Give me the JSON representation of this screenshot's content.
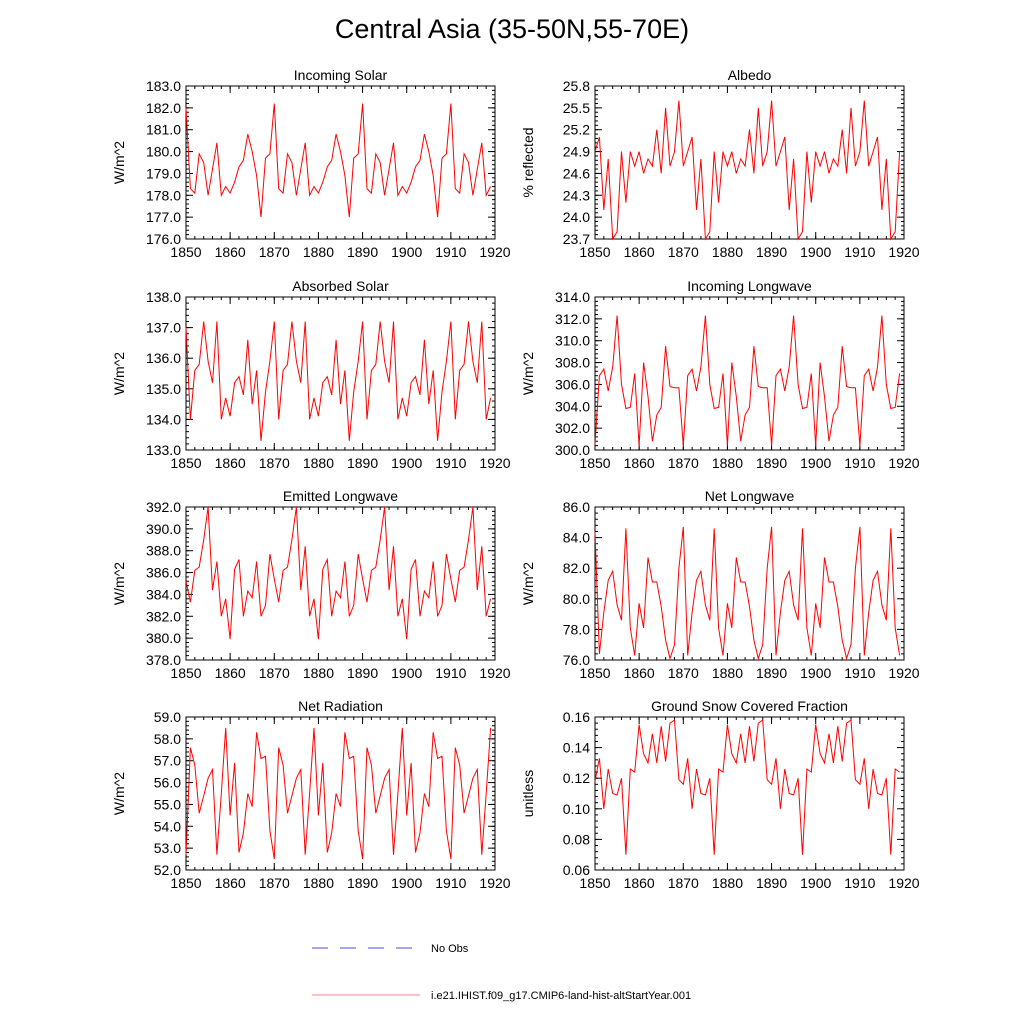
{
  "page": {
    "title": "Central Asia (35-50N,55-70E)"
  },
  "legend": {
    "obs_label": "No Obs",
    "model_label": "i.e21.IHIST.f09_g17.CMIP6-land-hist-altStartYear.001",
    "obs_color": "#4b4bd8",
    "model_color": "#ff0000"
  },
  "chart_data": [
    {
      "type": "line",
      "title": "Incoming Solar",
      "ylabel": "W/m^2",
      "xlim": [
        1850,
        1920
      ],
      "ylim": [
        176.0,
        183.0
      ],
      "xticks": [
        "1850",
        "1860",
        "1870",
        "1880",
        "1890",
        "1900",
        "1910",
        "1920"
      ],
      "yticks": [
        "176.0",
        "177.0",
        "178.0",
        "179.0",
        "180.0",
        "181.0",
        "182.0",
        "183.0"
      ],
      "x_start": 1850,
      "series": [
        {
          "values": [
            182.0,
            178.3,
            178.1,
            179.9,
            179.5,
            178.0,
            179.2,
            180.4,
            178.0,
            178.4,
            178.1,
            178.6,
            179.3,
            179.6,
            180.8,
            180.0,
            178.9,
            177.0,
            179.7,
            179.9,
            182.2,
            178.3,
            178.1,
            179.9,
            179.5,
            178.0,
            179.2,
            180.4,
            178.0,
            178.4,
            178.1,
            178.6,
            179.3,
            179.6,
            180.8,
            180.0,
            178.9,
            177.0,
            179.7,
            179.9,
            182.2,
            178.3,
            178.1,
            179.9,
            179.5,
            178.0,
            179.2,
            180.4,
            178.0,
            178.4,
            178.1,
            178.6,
            179.3,
            179.6,
            180.8,
            180.0,
            178.9,
            177.0,
            179.7,
            179.9,
            182.2,
            178.3,
            178.1,
            179.9,
            179.5,
            178.0,
            179.2,
            180.4,
            178.0,
            178.4
          ]
        }
      ]
    },
    {
      "type": "line",
      "title": "Albedo",
      "ylabel": "% reflected",
      "xlim": [
        1850,
        1920
      ],
      "ylim": [
        23.7,
        25.8
      ],
      "xticks": [
        "1850",
        "1860",
        "1870",
        "1880",
        "1890",
        "1900",
        "1910",
        "1920"
      ],
      "yticks": [
        "23.7",
        "24.0",
        "24.3",
        "24.6",
        "24.9",
        "25.2",
        "25.5",
        "25.8"
      ],
      "x_start": 1850,
      "series": [
        {
          "values": [
            24.9,
            25.1,
            24.1,
            24.8,
            23.7,
            23.8,
            24.9,
            24.2,
            24.9,
            24.7,
            24.9,
            24.6,
            24.8,
            24.7,
            25.2,
            24.6,
            25.5,
            24.7,
            24.9,
            25.6,
            24.7,
            24.9,
            25.1,
            24.1,
            24.8,
            23.7,
            23.8,
            24.9,
            24.2,
            24.9,
            24.7,
            24.9,
            24.6,
            24.8,
            24.7,
            25.2,
            24.6,
            25.5,
            24.7,
            24.9,
            25.6,
            24.7,
            24.9,
            25.1,
            24.1,
            24.8,
            23.7,
            23.8,
            24.9,
            24.2,
            24.9,
            24.7,
            24.9,
            24.6,
            24.8,
            24.7,
            25.2,
            24.6,
            25.5,
            24.7,
            24.9,
            25.6,
            24.7,
            24.9,
            25.1,
            24.1,
            24.8,
            23.7,
            23.8,
            24.9
          ]
        }
      ]
    },
    {
      "type": "line",
      "title": "Absorbed Solar",
      "ylabel": "W/m^2",
      "xlim": [
        1850,
        1920
      ],
      "ylim": [
        133.0,
        138.0
      ],
      "xticks": [
        "1850",
        "1860",
        "1870",
        "1880",
        "1890",
        "1900",
        "1910",
        "1920"
      ],
      "yticks": [
        "133.0",
        "134.0",
        "135.0",
        "136.0",
        "137.0",
        "138.0"
      ],
      "x_start": 1850,
      "series": [
        {
          "values": [
            137.0,
            134.0,
            135.6,
            135.8,
            137.2,
            135.9,
            135.2,
            137.2,
            134.0,
            134.7,
            134.1,
            135.2,
            135.4,
            134.8,
            136.6,
            134.5,
            135.6,
            133.3,
            134.9,
            135.9,
            137.2,
            134.0,
            135.6,
            135.8,
            137.2,
            135.9,
            135.2,
            137.2,
            134.0,
            134.7,
            134.1,
            135.2,
            135.4,
            134.8,
            136.6,
            134.5,
            135.6,
            133.3,
            134.9,
            135.9,
            137.2,
            134.0,
            135.6,
            135.8,
            137.2,
            135.9,
            135.2,
            137.2,
            134.0,
            134.7,
            134.1,
            135.2,
            135.4,
            134.8,
            136.6,
            134.5,
            135.6,
            133.3,
            134.9,
            135.9,
            137.2,
            134.0,
            135.6,
            135.8,
            137.2,
            135.9,
            135.2,
            137.2,
            134.0,
            134.7
          ]
        }
      ]
    },
    {
      "type": "line",
      "title": "Incoming Longwave",
      "ylabel": "W/m^2",
      "xlim": [
        1850,
        1920
      ],
      "ylim": [
        300.0,
        314.0
      ],
      "xticks": [
        "1850",
        "1860",
        "1870",
        "1880",
        "1890",
        "1900",
        "1910",
        "1920"
      ],
      "yticks": [
        "300.0",
        "302.0",
        "304.0",
        "306.0",
        "308.0",
        "310.0",
        "312.0",
        "314.0"
      ],
      "x_start": 1850,
      "series": [
        {
          "values": [
            300.5,
            306.8,
            307.4,
            305.4,
            307.6,
            312.3,
            306.0,
            303.8,
            303.9,
            307.0,
            300.4,
            308.0,
            304.9,
            300.8,
            303.2,
            303.9,
            309.5,
            305.8,
            305.7,
            305.7,
            300.4,
            306.8,
            307.4,
            305.4,
            307.6,
            312.3,
            306.0,
            303.8,
            303.9,
            307.0,
            300.4,
            308.0,
            304.9,
            300.8,
            303.2,
            303.9,
            309.5,
            305.8,
            305.7,
            305.7,
            300.4,
            306.8,
            307.4,
            305.4,
            307.6,
            312.3,
            306.0,
            303.8,
            303.9,
            307.0,
            300.4,
            308.0,
            304.9,
            300.8,
            303.2,
            303.9,
            309.5,
            305.8,
            305.7,
            305.7,
            300.4,
            306.8,
            307.4,
            305.4,
            307.6,
            312.3,
            306.0,
            303.8,
            303.9,
            307.0
          ]
        }
      ]
    },
    {
      "type": "line",
      "title": "Emitted Longwave",
      "ylabel": "W/m^2",
      "xlim": [
        1850,
        1920
      ],
      "ylim": [
        378.0,
        392.0
      ],
      "xticks": [
        "1850",
        "1860",
        "1870",
        "1880",
        "1890",
        "1900",
        "1910",
        "1920"
      ],
      "yticks": [
        "378.0",
        "380.0",
        "382.0",
        "384.0",
        "386.0",
        "388.0",
        "390.0",
        "392.0"
      ],
      "x_start": 1850,
      "series": [
        {
          "values": [
            385.2,
            383.3,
            386.2,
            386.5,
            389.0,
            392.0,
            384.4,
            387.0,
            382.0,
            383.6,
            379.9,
            386.3,
            387.2,
            382.0,
            384.3,
            383.7,
            387.0,
            382.0,
            383.0,
            387.7,
            385.4,
            383.3,
            386.2,
            386.5,
            389.0,
            392.0,
            384.4,
            388.4,
            382.0,
            383.6,
            379.9,
            386.3,
            387.2,
            382.0,
            384.3,
            383.7,
            387.0,
            382.0,
            383.0,
            387.7,
            385.4,
            383.3,
            386.2,
            386.5,
            389.0,
            392.0,
            384.4,
            388.4,
            382.0,
            383.6,
            379.9,
            386.3,
            387.2,
            382.0,
            384.3,
            383.7,
            387.0,
            382.0,
            383.0,
            387.7,
            385.4,
            383.3,
            386.2,
            386.5,
            389.0,
            392.0,
            384.4,
            388.4,
            382.0,
            383.6
          ]
        }
      ]
    },
    {
      "type": "line",
      "title": "Net Longwave",
      "ylabel": "W/m^2",
      "xlim": [
        1850,
        1920
      ],
      "ylim": [
        76.0,
        86.0
      ],
      "xticks": [
        "1850",
        "1860",
        "1870",
        "1880",
        "1890",
        "1900",
        "1910",
        "1920"
      ],
      "yticks": [
        "76.0",
        "78.0",
        "80.0",
        "82.0",
        "84.0",
        "86.0"
      ],
      "x_start": 1850,
      "series": [
        {
          "values": [
            84.4,
            76.4,
            79.1,
            81.2,
            81.8,
            79.6,
            78.6,
            84.6,
            78.1,
            76.3,
            79.7,
            78.1,
            82.7,
            81.1,
            81.1,
            79.5,
            77.3,
            76.1,
            77.0,
            82.0,
            84.7,
            76.3,
            79.1,
            81.2,
            81.8,
            79.6,
            78.6,
            84.6,
            78.1,
            76.3,
            79.7,
            78.1,
            82.7,
            81.1,
            81.1,
            79.5,
            77.3,
            76.1,
            77.0,
            82.0,
            84.7,
            76.3,
            79.1,
            81.2,
            81.8,
            79.6,
            78.6,
            84.6,
            78.1,
            76.3,
            79.7,
            78.1,
            82.7,
            81.1,
            81.1,
            79.5,
            77.3,
            76.1,
            77.0,
            82.0,
            84.7,
            76.3,
            79.1,
            81.2,
            81.8,
            79.6,
            78.6,
            84.6,
            78.1,
            76.3
          ]
        }
      ]
    },
    {
      "type": "line",
      "title": "Net Radiation",
      "ylabel": "W/m^2",
      "xlim": [
        1850,
        1920
      ],
      "ylim": [
        52.0,
        59.0
      ],
      "xticks": [
        "1850",
        "1860",
        "1870",
        "1880",
        "1890",
        "1900",
        "1910",
        "1920"
      ],
      "yticks": [
        "52.0",
        "53.0",
        "54.0",
        "55.0",
        "56.0",
        "57.0",
        "58.0",
        "59.0"
      ],
      "x_start": 1850,
      "series": [
        {
          "values": [
            52.7,
            57.6,
            56.8,
            54.6,
            55.4,
            56.2,
            56.6,
            52.7,
            55.5,
            58.5,
            54.5,
            56.9,
            52.8,
            53.7,
            55.5,
            54.9,
            58.3,
            57.1,
            57.2,
            53.8,
            52.5,
            57.6,
            56.8,
            54.6,
            55.4,
            56.2,
            56.6,
            52.7,
            55.5,
            58.5,
            54.5,
            56.9,
            52.8,
            53.7,
            55.5,
            54.9,
            58.3,
            57.1,
            57.2,
            53.8,
            52.5,
            57.6,
            56.8,
            54.6,
            55.4,
            56.2,
            56.6,
            52.7,
            55.5,
            58.5,
            54.5,
            56.9,
            52.8,
            53.7,
            55.5,
            54.9,
            58.3,
            57.1,
            57.2,
            53.8,
            52.5,
            57.6,
            56.8,
            54.6,
            55.4,
            56.2,
            56.6,
            52.7,
            55.5,
            58.5
          ]
        }
      ]
    },
    {
      "type": "line",
      "title": "Ground Snow Covered Fraction",
      "ylabel": "unitless",
      "xlim": [
        1850,
        1920
      ],
      "ylim": [
        0.06,
        0.16
      ],
      "xticks": [
        "1850",
        "1860",
        "1870",
        "1880",
        "1890",
        "1900",
        "1910",
        "1920"
      ],
      "yticks": [
        "0.06",
        "0.08",
        "0.10",
        "0.12",
        "0.14",
        "0.16"
      ],
      "x_start": 1850,
      "series": [
        {
          "values": [
            0.118,
            0.133,
            0.1,
            0.126,
            0.11,
            0.109,
            0.12,
            0.07,
            0.126,
            0.124,
            0.155,
            0.136,
            0.13,
            0.149,
            0.13,
            0.154,
            0.131,
            0.156,
            0.158,
            0.119,
            0.116,
            0.133,
            0.1,
            0.126,
            0.11,
            0.109,
            0.12,
            0.07,
            0.126,
            0.124,
            0.155,
            0.136,
            0.13,
            0.149,
            0.13,
            0.154,
            0.131,
            0.156,
            0.158,
            0.119,
            0.116,
            0.133,
            0.1,
            0.126,
            0.11,
            0.109,
            0.12,
            0.07,
            0.126,
            0.124,
            0.155,
            0.136,
            0.13,
            0.149,
            0.13,
            0.154,
            0.131,
            0.156,
            0.158,
            0.119,
            0.116,
            0.133,
            0.1,
            0.126,
            0.11,
            0.109,
            0.12,
            0.07,
            0.126,
            0.124
          ]
        }
      ]
    }
  ]
}
